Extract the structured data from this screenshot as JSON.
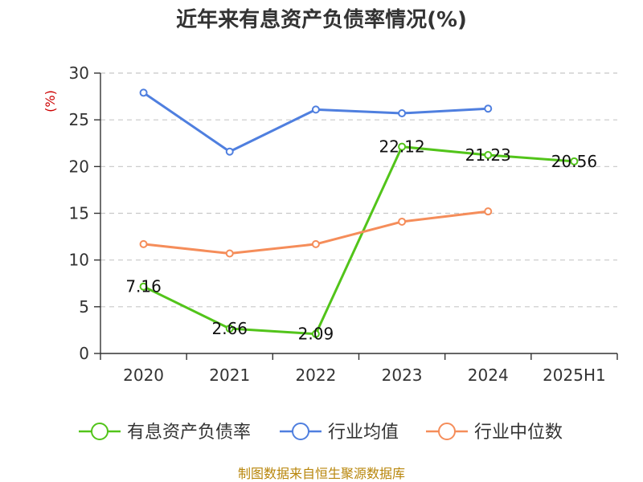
{
  "chart_data": {
    "type": "line",
    "title": "近年来有息资产负债率情况(%)",
    "ylabel": "(%)",
    "xlabel": "",
    "categories": [
      "2020",
      "2021",
      "2022",
      "2023",
      "2024",
      "2025H1"
    ],
    "ylim": [
      0,
      30
    ],
    "yticks": [
      0,
      5,
      10,
      15,
      20,
      25,
      30
    ],
    "grid": true,
    "legend_position": "bottom",
    "series": [
      {
        "name": "有息资产负债率",
        "color": "#52c41a",
        "values": [
          7.16,
          2.66,
          2.09,
          22.12,
          21.23,
          20.56
        ],
        "labels": [
          "7.16",
          "2.66",
          "2.09",
          "22.12",
          "21.23",
          "20.56"
        ]
      },
      {
        "name": "行业均值",
        "color": "#4f7fdf",
        "values": [
          27.9,
          21.6,
          26.1,
          25.7,
          26.2,
          null
        ]
      },
      {
        "name": "行业中位数",
        "color": "#f58d5a",
        "values": [
          11.7,
          10.7,
          11.7,
          14.1,
          15.2,
          null
        ]
      }
    ]
  },
  "footer": {
    "source": "制图数据来自恒生聚源数据库"
  }
}
